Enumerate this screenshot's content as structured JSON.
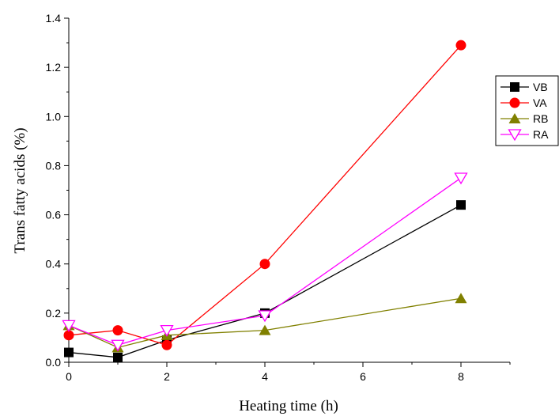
{
  "chart_data": {
    "type": "line",
    "xlabel": "Heating time (h)",
    "ylabel": "Trans fatty acids (%)",
    "xlim": [
      0,
      9
    ],
    "ylim": [
      0,
      1.4
    ],
    "xticks": [
      0,
      2,
      4,
      6,
      8
    ],
    "xtick_labels": [
      "0",
      "2",
      "4",
      "6",
      "8"
    ],
    "yticks": [
      0.0,
      0.2,
      0.4,
      0.6,
      0.8,
      1.0,
      1.2,
      1.4
    ],
    "ytick_labels": [
      "0.0",
      "0.2",
      "0.4",
      "0.6",
      "0.8",
      "1.0",
      "1.2",
      "1.4"
    ],
    "grid": false,
    "legend_position": "right",
    "x": [
      0,
      1,
      2,
      4,
      8
    ],
    "series": [
      {
        "name": "VB",
        "values": [
          0.04,
          0.02,
          0.09,
          0.2,
          0.64
        ],
        "color": "#000000",
        "marker": "square"
      },
      {
        "name": "VA",
        "values": [
          0.11,
          0.13,
          0.07,
          0.4,
          1.29
        ],
        "color": "#ff0000",
        "marker": "circle"
      },
      {
        "name": "RB",
        "values": [
          0.15,
          0.06,
          0.11,
          0.13,
          0.26
        ],
        "color": "#808000",
        "marker": "triangle-up"
      },
      {
        "name": "RA",
        "values": [
          0.15,
          0.07,
          0.13,
          0.19,
          0.75
        ],
        "color": "#ff00ff",
        "marker": "triangle-down-open"
      }
    ]
  }
}
